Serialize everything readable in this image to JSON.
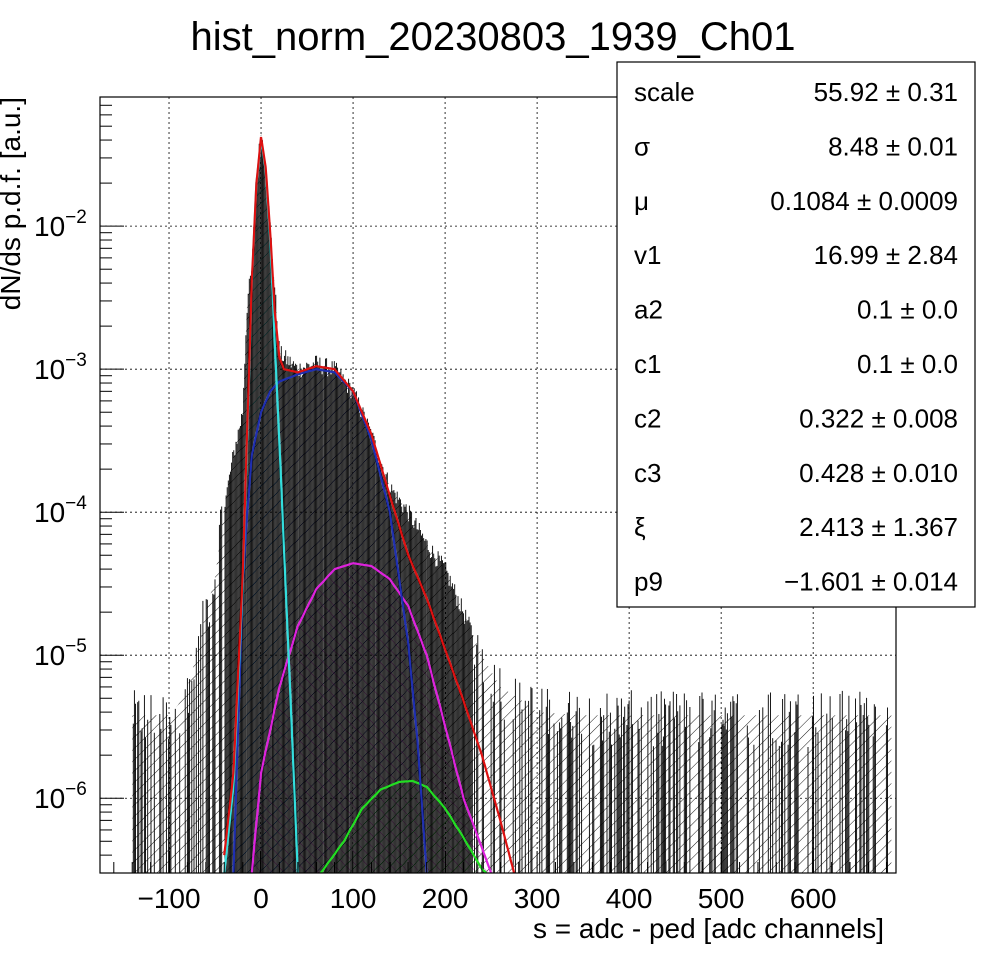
{
  "chart_data": {
    "type": "histogram",
    "title": "hist_norm_20230803_1939_Ch01",
    "xlabel": "s = adc - ped [adc channels]",
    "ylabel": "dN/ds p.d.f. [a.u.]",
    "xlim": [
      -175,
      690
    ],
    "ylim": [
      3e-07,
      0.08
    ],
    "yscale": "log",
    "grid": true,
    "x_ticks": [
      -100,
      0,
      100,
      200,
      300,
      400,
      500,
      600
    ],
    "x_tick_labels": [
      "−100",
      "0",
      "100",
      "200",
      "300",
      "400",
      "500",
      "600"
    ],
    "y_ticks": [
      {
        "value": 0.01,
        "base": "10",
        "exp": "−2"
      },
      {
        "value": 0.001,
        "base": "10",
        "exp": "−3"
      },
      {
        "value": 0.0001,
        "base": "10",
        "exp": "−4"
      },
      {
        "value": 1e-05,
        "base": "10",
        "exp": "−5"
      },
      {
        "value": 1e-06,
        "base": "10",
        "exp": "−6"
      }
    ],
    "stats_box": {
      "placement": "top-right",
      "rows": [
        {
          "name": "scale",
          "value": "55.92 ± 0.31"
        },
        {
          "name": "σ",
          "value": "8.48 ± 0.01"
        },
        {
          "name": "μ",
          "value": "0.1084 ± 0.0009"
        },
        {
          "name": "v1",
          "value": "16.99 ± 2.84"
        },
        {
          "name": "a2",
          "value": "0.1 ± 0.0"
        },
        {
          "name": "c1",
          "value": "0.1 ± 0.0"
        },
        {
          "name": "c2",
          "value": "0.322 ± 0.008"
        },
        {
          "name": "c3",
          "value": "0.428 ± 0.010"
        },
        {
          "name": "ξ",
          "value": "2.413 ± 1.367"
        },
        {
          "name": "p9",
          "value": "−1.601 ± 0.014"
        }
      ]
    },
    "components": [
      {
        "id": "pedestal",
        "color": "#33dddd",
        "hatch": true,
        "points": [
          [
            -40,
            3e-07
          ],
          [
            -30,
            1.2e-06
          ],
          [
            -20,
            3e-05
          ],
          [
            -10,
            0.004
          ],
          [
            -5,
            0.02
          ],
          [
            0,
            0.04
          ],
          [
            5,
            0.025
          ],
          [
            10,
            0.008
          ],
          [
            15,
            0.0015
          ],
          [
            20,
            0.0003
          ],
          [
            30,
            1e-05
          ],
          [
            40,
            3e-07
          ]
        ]
      },
      {
        "id": "single-photoelectron",
        "color": "#1f2fb0",
        "hatch": true,
        "points": [
          [
            -30,
            3e-07
          ],
          [
            -25,
            3e-06
          ],
          [
            -20,
            3e-05
          ],
          [
            -15,
            0.0001
          ],
          [
            -10,
            0.00025
          ],
          [
            0,
            0.0005
          ],
          [
            10,
            0.0007
          ],
          [
            20,
            0.00082
          ],
          [
            40,
            0.00092
          ],
          [
            60,
            0.001
          ],
          [
            80,
            0.00095
          ],
          [
            100,
            0.0007
          ],
          [
            120,
            0.00032
          ],
          [
            140,
            0.0001
          ],
          [
            160,
            1.2e-05
          ],
          [
            170,
            2.5e-06
          ],
          [
            180,
            3e-07
          ]
        ]
      },
      {
        "id": "two-photoelectron",
        "color": "#dd22dd",
        "hatch": true,
        "points": [
          [
            -10,
            3e-07
          ],
          [
            0,
            1.5e-06
          ],
          [
            20,
            6e-06
          ],
          [
            40,
            1.6e-05
          ],
          [
            60,
            2.9e-05
          ],
          [
            80,
            4e-05
          ],
          [
            100,
            4.4e-05
          ],
          [
            120,
            4.2e-05
          ],
          [
            140,
            3.4e-05
          ],
          [
            160,
            2.2e-05
          ],
          [
            180,
            1e-05
          ],
          [
            200,
            3.2e-06
          ],
          [
            220,
            1e-06
          ],
          [
            240,
            4.5e-07
          ],
          [
            250,
            3e-07
          ]
        ]
      },
      {
        "id": "three-photoelectron",
        "color": "#22dd22",
        "hatch": true,
        "points": [
          [
            65,
            3e-07
          ],
          [
            90,
            5e-07
          ],
          [
            110,
            8.5e-07
          ],
          [
            130,
            1.15e-06
          ],
          [
            150,
            1.3e-06
          ],
          [
            165,
            1.32e-06
          ],
          [
            180,
            1.2e-06
          ],
          [
            200,
            8.5e-07
          ],
          [
            220,
            5.3e-07
          ],
          [
            240,
            3.2e-07
          ],
          [
            245,
            3e-07
          ]
        ]
      },
      {
        "id": "total-fit",
        "color": "#dd1111",
        "hatch": false,
        "points": [
          [
            -40,
            4e-07
          ],
          [
            -30,
            1.5e-06
          ],
          [
            -20,
            3.5e-05
          ],
          [
            -10,
            0.0042
          ],
          [
            -5,
            0.02
          ],
          [
            0,
            0.042
          ],
          [
            5,
            0.026
          ],
          [
            10,
            0.009
          ],
          [
            15,
            0.0025
          ],
          [
            20,
            0.0012
          ],
          [
            25,
            0.001
          ],
          [
            40,
            0.00095
          ],
          [
            60,
            0.00105
          ],
          [
            80,
            0.001
          ],
          [
            100,
            0.0007
          ],
          [
            120,
            0.00035
          ],
          [
            140,
            0.00013
          ],
          [
            160,
            5e-05
          ],
          [
            180,
            2.5e-05
          ],
          [
            200,
            1.1e-05
          ],
          [
            220,
            4.8e-06
          ],
          [
            240,
            2e-06
          ],
          [
            260,
            7e-07
          ],
          [
            275,
            3e-07
          ]
        ]
      }
    ],
    "data_envelope": [
      [
        -140,
        3.8e-06
      ],
      [
        -120,
        3.8e-06
      ],
      [
        -100,
        3.8e-06
      ],
      [
        -90,
        4.5e-06
      ],
      [
        -80,
        6e-06
      ],
      [
        -70,
        1e-05
      ],
      [
        -60,
        2e-05
      ],
      [
        -50,
        3.5e-05
      ],
      [
        -40,
        0.00011
      ],
      [
        -30,
        0.00025
      ],
      [
        -20,
        0.0005
      ],
      [
        -15,
        0.003
      ],
      [
        -10,
        0.005
      ],
      [
        -5,
        0.022
      ],
      [
        0,
        0.045
      ],
      [
        5,
        0.028
      ],
      [
        10,
        0.01
      ],
      [
        20,
        0.0013
      ],
      [
        40,
        0.001
      ],
      [
        60,
        0.0011
      ],
      [
        80,
        0.001
      ],
      [
        100,
        0.0007
      ],
      [
        120,
        0.00035
      ],
      [
        140,
        0.00015
      ],
      [
        160,
        0.0001
      ],
      [
        180,
        6e-05
      ],
      [
        200,
        4e-05
      ],
      [
        220,
        2e-05
      ],
      [
        240,
        1e-05
      ],
      [
        260,
        6e-06
      ],
      [
        280,
        5e-06
      ],
      [
        300,
        4e-06
      ],
      [
        350,
        3.8e-06
      ],
      [
        400,
        3.8e-06
      ],
      [
        450,
        3.8e-06
      ],
      [
        500,
        3.8e-06
      ],
      [
        550,
        3.8e-06
      ],
      [
        600,
        3.8e-06
      ],
      [
        650,
        3.8e-06
      ],
      [
        685,
        3.8e-06
      ]
    ]
  }
}
